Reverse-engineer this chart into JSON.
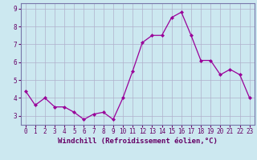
{
  "x": [
    0,
    1,
    2,
    3,
    4,
    5,
    6,
    7,
    8,
    9,
    10,
    11,
    12,
    13,
    14,
    15,
    16,
    17,
    18,
    19,
    20,
    21,
    22,
    23
  ],
  "y": [
    4.4,
    3.6,
    4.0,
    3.5,
    3.5,
    3.2,
    2.8,
    3.1,
    3.2,
    2.8,
    4.0,
    5.5,
    7.1,
    7.5,
    7.5,
    8.5,
    8.8,
    7.5,
    6.1,
    6.1,
    5.3,
    5.6,
    5.3,
    4.0
  ],
  "line_color": "#990099",
  "marker": "D",
  "markersize": 2.0,
  "linewidth": 0.9,
  "xlabel": "Windchill (Refroidissement éolien,°C)",
  "bg_color": "#cce8f0",
  "grid_color": "#b0b0cc",
  "xlim": [
    -0.5,
    23.5
  ],
  "ylim": [
    2.5,
    9.3
  ],
  "yticks": [
    3,
    4,
    5,
    6,
    7,
    8,
    9
  ],
  "xticks": [
    0,
    1,
    2,
    3,
    4,
    5,
    6,
    7,
    8,
    9,
    10,
    11,
    12,
    13,
    14,
    15,
    16,
    17,
    18,
    19,
    20,
    21,
    22,
    23
  ],
  "tick_fontsize": 5.5,
  "xlabel_fontsize": 6.5,
  "spine_color": "#660066",
  "axis_border_color": "#7777aa"
}
